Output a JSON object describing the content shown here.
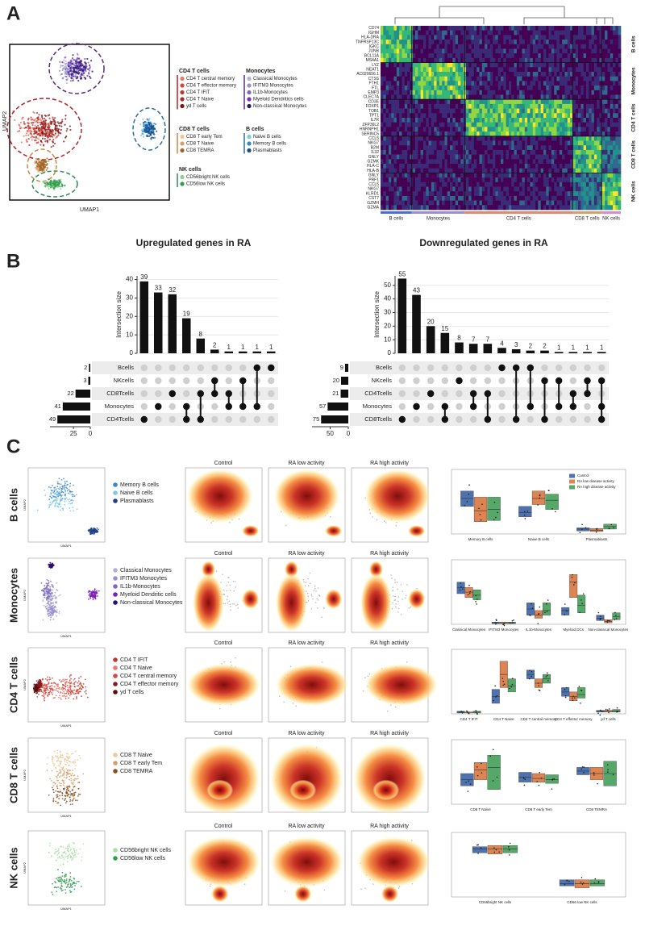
{
  "panel_a": {
    "label": "A",
    "umap": {
      "x_label": "UMAP1",
      "y_label": "UMAP2"
    },
    "legend": [
      {
        "title": "CD4 T cells",
        "color": "#b22222",
        "items": [
          {
            "name": "CD4 T central memory",
            "color": "#e8786b"
          },
          {
            "name": "CD4 T effector memory",
            "color": "#d1493f"
          },
          {
            "name": "CD4 T IFIT",
            "color": "#c03a32"
          },
          {
            "name": "CD4 T Naive",
            "color": "#a82a24"
          },
          {
            "name": "yd T cells",
            "color": "#7a1616"
          }
        ]
      },
      {
        "title": "CD8 T cells",
        "color": "#c98b3c",
        "items": [
          {
            "name": "CD8 T early Tem",
            "color": "#ecc99a"
          },
          {
            "name": "CD8 T Naive",
            "color": "#d4a06a"
          },
          {
            "name": "CD8 TEMRA",
            "color": "#a0672c"
          }
        ]
      },
      {
        "title": "NK cells",
        "color": "#2e8b57",
        "items": [
          {
            "name": "CD56bright NK cells",
            "color": "#8fd18f"
          },
          {
            "name": "CD56low NK cells",
            "color": "#2e9e4f"
          }
        ]
      },
      {
        "title": "Monocytes",
        "color": "#5b2a86",
        "items": [
          {
            "name": "Classical Monocytes",
            "color": "#b7aed6"
          },
          {
            "name": "IFITM3 Monocytes",
            "color": "#9c8fc9"
          },
          {
            "name": "IL1b-Monocytes",
            "color": "#7a6bbf"
          },
          {
            "name": "Myeloid Dendritics cells",
            "color": "#7b2fbf"
          },
          {
            "name": "Non-classical Monocytes",
            "color": "#2a1a6e"
          }
        ]
      },
      {
        "title": "B cells",
        "color": "#2a6f9b",
        "items": [
          {
            "name": "Naive B cells",
            "color": "#7ec8e8"
          },
          {
            "name": "Memory B cells",
            "color": "#2a8fc8"
          },
          {
            "name": "Plasmablasts",
            "color": "#1a4f8f"
          }
        ]
      }
    ],
    "heatmap": {
      "genes": [
        "CD74",
        "IGHM",
        "HLA-DRA",
        "TNFRSF13C",
        "IGKC",
        "JUNB",
        "BCL11A",
        "MS4A1",
        "LYZ",
        "NEAT1",
        "AC020656.1",
        "CTSS",
        "FTH1",
        "FTL",
        "EMP3",
        "CLEC7A",
        "CD3E",
        "FOXP1",
        "TOB1",
        "TPT1",
        "IL7R",
        "ZFP36L2",
        "HNRNPH1",
        "SERINC5",
        "CCL5",
        "NKG7",
        "B2M",
        "IL32",
        "GNLY",
        "GZMK",
        "HLA-C",
        "HLA-B",
        "GNLY",
        "PRF1",
        "CCL5",
        "NKG7",
        "KLRD1",
        "CST7",
        "GZMH",
        "GZMA"
      ],
      "row_groups": [
        "B cells",
        "Monocytes",
        "CD4 T cells",
        "CD8 T cells",
        "NK cells"
      ],
      "column_groups": [
        {
          "name": "B cells",
          "color": "#4a6fd0"
        },
        {
          "name": "Monocytes",
          "color": "#9b8fcf"
        },
        {
          "name": "CD4 T cells",
          "color": "#e08a6a"
        },
        {
          "name": "CD8 T cells",
          "color": "#d4a06a"
        },
        {
          "name": "NK cells",
          "color": "#d98ad0"
        }
      ]
    }
  },
  "panel_b": {
    "label": "B",
    "charts": [
      {
        "type": "upset",
        "title": "Upregulated genes in RA",
        "y_label": "Intersection size",
        "values": [
          39,
          33,
          32,
          19,
          8,
          2,
          1,
          1,
          1,
          1
        ],
        "ylim": [
          0,
          42
        ],
        "yticks": [
          0,
          10,
          20,
          30,
          40
        ],
        "grid": true,
        "sets": [
          "Bcells",
          "NKcells",
          "CD8Tcells",
          "Monocytes",
          "CD4Tcells"
        ],
        "set_sizes": [
          2,
          3,
          22,
          41,
          49
        ],
        "set_xlim": [
          0,
          60
        ],
        "set_xticks": [
          25,
          0
        ],
        "intersections": [
          [
            4
          ],
          [
            3
          ],
          [
            2
          ],
          [
            4,
            3
          ],
          [
            4,
            2
          ],
          [
            1,
            2
          ],
          [
            3,
            2
          ],
          [
            1,
            3
          ],
          [
            0,
            3
          ],
          [
            0
          ]
        ]
      },
      {
        "type": "upset",
        "title": "Downregulated genes in RA",
        "y_label": "Intersection size",
        "values": [
          55,
          43,
          20,
          15,
          8,
          7,
          7,
          4,
          3,
          2,
          2,
          1,
          1,
          1,
          1
        ],
        "ylim": [
          0,
          57
        ],
        "yticks": [
          0,
          10,
          20,
          30,
          40,
          50
        ],
        "grid": true,
        "sets": [
          "Bcells",
          "NKcells",
          "CD4Tcells",
          "Monocytes",
          "CD8Tcells"
        ],
        "set_sizes": [
          9,
          20,
          21,
          57,
          75
        ],
        "set_xlim": [
          0,
          100
        ],
        "set_xticks": [
          50,
          0
        ],
        "intersections": [
          [
            4
          ],
          [
            3
          ],
          [
            2
          ],
          [
            4,
            3
          ],
          [
            1
          ],
          [
            3,
            2
          ],
          [
            4,
            2
          ],
          [
            0
          ],
          [
            0,
            4
          ],
          [
            0,
            3
          ],
          [
            1,
            4
          ],
          [
            1,
            3
          ],
          [
            2,
            3
          ],
          [
            1,
            2
          ],
          [
            1,
            3,
            4
          ]
        ]
      }
    ]
  },
  "panel_c": {
    "label": "C",
    "conditions": [
      "Control",
      "RA low activity",
      "RA high activity"
    ],
    "umap_axes": [
      "UMAP1",
      "UMAP2"
    ],
    "box_legend": [
      {
        "name": "Control",
        "color": "#4c72b0"
      },
      {
        "name": "RA low disease activity",
        "color": "#dd8452"
      },
      {
        "name": "RA high disease activity",
        "color": "#55a868"
      }
    ],
    "rows": [
      {
        "title": "B cells",
        "legend": [
          {
            "name": "Memory B cells",
            "color": "#3d86c6"
          },
          {
            "name": "Naive B cells",
            "color": "#79c8e8"
          },
          {
            "name": "Plasmablasts",
            "color": "#1b3f8a"
          }
        ],
        "box": {
          "categories": [
            "Memory B cells",
            "Naive B cells",
            "Plasmablasts"
          ],
          "ylim": [
            0,
            100
          ],
          "series": [
            {
              "q1": [
                45,
                28,
                5
              ],
              "median": [
                58,
                35,
                8
              ],
              "q3": [
                70,
                45,
                10
              ]
            },
            {
              "q1": [
                20,
                48,
                4
              ],
              "median": [
                38,
                58,
                6
              ],
              "q3": [
                60,
                70,
                9
              ]
            },
            {
              "q1": [
                22,
                40,
                8
              ],
              "median": [
                40,
                55,
                12
              ],
              "q3": [
                60,
                65,
                16
              ]
            }
          ]
        }
      },
      {
        "title": "Monocytes",
        "legend": [
          {
            "name": "Classical Monocytes",
            "color": "#b3aed6"
          },
          {
            "name": "IFITM3 Monocytes",
            "color": "#9b8fcf"
          },
          {
            "name": "IL1b-Monocytes",
            "color": "#7d6bbf"
          },
          {
            "name": "Myeloid Dendritic cells",
            "color": "#7b1fbf"
          },
          {
            "name": "Non-classical Monocytes",
            "color": "#2a0f6e"
          }
        ],
        "box": {
          "categories": [
            "Classical Monocytes",
            "IFITM3 Monocytes",
            "IL1b-Monocytes",
            "Myeloid DCs",
            "Non-classical Monocytes"
          ],
          "ylim": [
            0,
            80
          ],
          "series": [
            {
              "q1": [
                40,
                1,
                12,
                12,
                5
              ],
              "median": [
                48,
                2,
                20,
                18,
                8
              ],
              "q3": [
                55,
                3,
                28,
                22,
                12
              ]
            },
            {
              "q1": [
                35,
                1,
                8,
                35,
                2
              ],
              "median": [
                42,
                2,
                12,
                55,
                4
              ],
              "q3": [
                48,
                3,
                18,
                65,
                6
              ]
            },
            {
              "q1": [
                32,
                1,
                12,
                15,
                6
              ],
              "median": [
                38,
                2,
                18,
                25,
                10
              ],
              "q3": [
                45,
                3,
                28,
                38,
                15
              ]
            }
          ]
        }
      },
      {
        "title": "CD4 T cells",
        "legend": [
          {
            "name": "CD4 T IFIT",
            "color": "#c0392b"
          },
          {
            "name": "CD4 T Naive",
            "color": "#e8786b"
          },
          {
            "name": "CD4 T central memory",
            "color": "#d1493f"
          },
          {
            "name": "CD4 T effector memory",
            "color": "#8b1a1a"
          },
          {
            "name": "yd T cells",
            "color": "#5a0f0f"
          }
        ],
        "box": {
          "categories": [
            "CD4 T IFIT",
            "CD4 T Naive",
            "CD4 T central memory",
            "CD4 T effector memory",
            "yd T cells"
          ],
          "ylim": [
            0,
            70
          ],
          "series": [
            {
              "q1": [
                1,
                12,
                40,
                20,
                2
              ],
              "median": [
                2,
                20,
                45,
                25,
                3
              ],
              "q3": [
                3,
                28,
                50,
                30,
                4
              ]
            },
            {
              "q1": [
                1,
                30,
                30,
                15,
                2
              ],
              "median": [
                2,
                45,
                35,
                20,
                3
              ],
              "q3": [
                2,
                60,
                40,
                25,
                4
              ]
            },
            {
              "q1": [
                1,
                25,
                35,
                18,
                2
              ],
              "median": [
                2,
                32,
                40,
                22,
                3
              ],
              "q3": [
                3,
                40,
                45,
                30,
                5
              ]
            }
          ]
        }
      },
      {
        "title": "CD8 T cells",
        "legend": [
          {
            "name": "CD8 T Naive",
            "color": "#ecc99a"
          },
          {
            "name": "CD8 T early Tem",
            "color": "#d4a06a"
          },
          {
            "name": "CD8 TEMRA",
            "color": "#8a4f1c"
          }
        ],
        "box": {
          "categories": [
            "CD8 T Naive",
            "CD8 T early Tem",
            "CD8 TEMRA"
          ],
          "ylim": [
            10,
            60
          ],
          "series": [
            {
              "q1": [
                25,
                28,
                34
              ],
              "median": [
                30,
                32,
                37
              ],
              "q3": [
                35,
                36,
                40
              ]
            },
            {
              "q1": [
                30,
                28,
                30
              ],
              "median": [
                38,
                31,
                35
              ],
              "q3": [
                44,
                35,
                40
              ]
            },
            {
              "q1": [
                22,
                27,
                25
              ],
              "median": [
                40,
                30,
                35
              ],
              "q3": [
                50,
                34,
                45
              ]
            }
          ]
        }
      },
      {
        "title": "NK cells",
        "legend": [
          {
            "name": "CD56bright NK cells",
            "color": "#a8e0a0"
          },
          {
            "name": "CD56low NK cells",
            "color": "#2e9e4f"
          }
        ],
        "box": {
          "categories": [
            "CD56bright NK cells",
            "CD56 low NK cells"
          ],
          "ylim": [
            0,
            100
          ],
          "series": [
            {
              "q1": [
                72,
                18
              ],
              "median": [
                78,
                22
              ],
              "q3": [
                82,
                28
              ]
            },
            {
              "q1": [
                70,
                15
              ],
              "median": [
                78,
                22
              ],
              "q3": [
                84,
                28
              ]
            },
            {
              "q1": [
                72,
                18
              ],
              "median": [
                78,
                22
              ],
              "q3": [
                84,
                28
              ]
            }
          ]
        }
      }
    ]
  }
}
